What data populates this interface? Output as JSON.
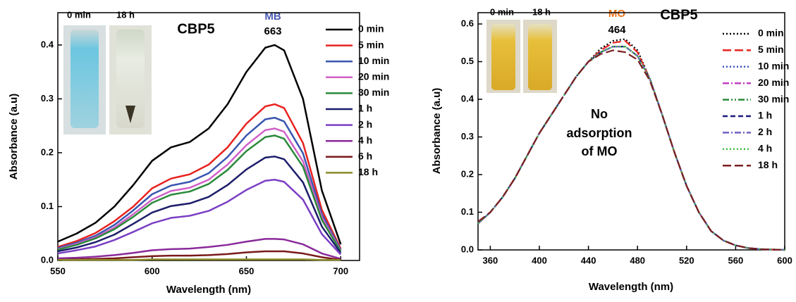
{
  "chart_data": [
    {
      "type": "line",
      "title": "CBP5",
      "annotations": [
        "MB",
        "663"
      ],
      "photo_labels": [
        "0 min",
        "18 h"
      ],
      "xlabel": "Wavelength (nm)",
      "ylabel": "Absorbance (a.u)",
      "x": [
        550,
        560,
        570,
        580,
        590,
        600,
        610,
        620,
        630,
        640,
        650,
        660,
        665,
        670,
        680,
        690,
        700
      ],
      "xlim": [
        550,
        710
      ],
      "xticks": [
        550,
        600,
        650,
        700
      ],
      "ylim": [
        0,
        0.46
      ],
      "yticks": [
        {
          "value": 0,
          "label": "0.0"
        },
        0.1,
        0.2,
        0.3,
        0.4
      ],
      "legend": "upper right",
      "series": [
        {
          "name": "0 min",
          "color": "#000000",
          "dash": "solid",
          "values": [
            0.035,
            0.05,
            0.07,
            0.1,
            0.14,
            0.185,
            0.21,
            0.22,
            0.245,
            0.29,
            0.35,
            0.395,
            0.4,
            0.39,
            0.3,
            0.13,
            0.03
          ]
        },
        {
          "name": "5 min",
          "color": "#e8221f",
          "dash": "solid",
          "values": [
            0.025,
            0.036,
            0.051,
            0.073,
            0.1,
            0.134,
            0.152,
            0.16,
            0.178,
            0.21,
            0.254,
            0.286,
            0.29,
            0.283,
            0.218,
            0.094,
            0.022
          ]
        },
        {
          "name": "10 min",
          "color": "#3a55b0",
          "dash": "solid",
          "values": [
            0.023,
            0.033,
            0.046,
            0.066,
            0.093,
            0.123,
            0.139,
            0.146,
            0.162,
            0.192,
            0.232,
            0.262,
            0.265,
            0.258,
            0.199,
            0.086,
            0.02
          ]
        },
        {
          "name": "20 min",
          "color": "#d060c8",
          "dash": "solid",
          "values": [
            0.021,
            0.031,
            0.043,
            0.061,
            0.086,
            0.113,
            0.129,
            0.135,
            0.15,
            0.178,
            0.214,
            0.242,
            0.245,
            0.239,
            0.184,
            0.08,
            0.018
          ]
        },
        {
          "name": "30 min",
          "color": "#2a8a3a",
          "dash": "solid",
          "values": [
            0.02,
            0.029,
            0.041,
            0.058,
            0.081,
            0.107,
            0.122,
            0.128,
            0.142,
            0.168,
            0.203,
            0.229,
            0.232,
            0.226,
            0.174,
            0.075,
            0.017
          ]
        },
        {
          "name": "1 h",
          "color": "#1d1d6b",
          "dash": "solid",
          "values": [
            0.017,
            0.024,
            0.034,
            0.048,
            0.068,
            0.089,
            0.101,
            0.106,
            0.118,
            0.14,
            0.169,
            0.191,
            0.193,
            0.188,
            0.145,
            0.063,
            0.014
          ]
        },
        {
          "name": "2 h",
          "color": "#7b3fc4",
          "dash": "solid",
          "values": [
            0.013,
            0.019,
            0.026,
            0.038,
            0.053,
            0.069,
            0.079,
            0.083,
            0.092,
            0.109,
            0.131,
            0.148,
            0.15,
            0.146,
            0.113,
            0.049,
            0.011
          ]
        },
        {
          "name": "4 h",
          "color": "#8a2a9a",
          "dash": "solid",
          "values": [
            0.004,
            0.005,
            0.007,
            0.01,
            0.014,
            0.019,
            0.021,
            0.022,
            0.025,
            0.029,
            0.035,
            0.04,
            0.04,
            0.039,
            0.03,
            0.013,
            0.003
          ]
        },
        {
          "name": "6 h",
          "color": "#7a1a1a",
          "dash": "solid",
          "values": [
            0.001,
            0.002,
            0.003,
            0.004,
            0.006,
            0.008,
            0.009,
            0.009,
            0.01,
            0.012,
            0.015,
            0.017,
            0.017,
            0.017,
            0.013,
            0.006,
            0.001
          ]
        },
        {
          "name": "18 h",
          "color": "#8a8a2a",
          "dash": "solid",
          "values": [
            0.001,
            0.001,
            0.001,
            0.001,
            0.001,
            0.002,
            0.002,
            0.002,
            0.002,
            0.002,
            0.002,
            0.002,
            0.002,
            0.002,
            0.002,
            0.001,
            0.001
          ]
        }
      ]
    },
    {
      "type": "line",
      "title": "CBP5",
      "annotations": [
        "MO",
        "464"
      ],
      "photo_labels": [
        "0 min",
        "18 h"
      ],
      "note": [
        "No",
        "adsorption",
        "of MO"
      ],
      "xlabel": "Wavelength (nm)",
      "ylabel": "Absorbance (a.u)",
      "x": [
        350,
        360,
        370,
        380,
        390,
        400,
        410,
        420,
        430,
        440,
        450,
        460,
        470,
        480,
        490,
        500,
        510,
        520,
        530,
        540,
        550,
        560,
        570,
        580,
        590,
        600
      ],
      "xlim": [
        350,
        600
      ],
      "xticks": [
        360,
        400,
        440,
        480,
        520,
        560,
        600
      ],
      "ylim": [
        0,
        0.63
      ],
      "yticks": [
        {
          "value": 0,
          "label": "0.0"
        },
        0.1,
        0.2,
        0.3,
        0.4,
        0.5,
        0.6
      ],
      "legend": "upper right",
      "series": [
        {
          "name": "0 min",
          "color": "#000000",
          "dash": "dot",
          "values": [
            0.07,
            0.1,
            0.14,
            0.19,
            0.25,
            0.31,
            0.36,
            0.41,
            0.46,
            0.5,
            0.535,
            0.555,
            0.56,
            0.53,
            0.455,
            0.36,
            0.26,
            0.17,
            0.1,
            0.05,
            0.025,
            0.012,
            0.005,
            0.002,
            0.001,
            0
          ]
        },
        {
          "name": "5 min",
          "color": "#e8221f",
          "dash": "longdash",
          "values": [
            0.07,
            0.1,
            0.14,
            0.19,
            0.25,
            0.31,
            0.36,
            0.41,
            0.46,
            0.5,
            0.53,
            0.55,
            0.555,
            0.525,
            0.455,
            0.36,
            0.26,
            0.17,
            0.1,
            0.05,
            0.025,
            0.012,
            0.005,
            0.002,
            0.001,
            0
          ]
        },
        {
          "name": "10 min",
          "color": "#4050c0",
          "dash": "dot",
          "values": [
            0.07,
            0.1,
            0.14,
            0.19,
            0.25,
            0.31,
            0.36,
            0.41,
            0.46,
            0.5,
            0.525,
            0.54,
            0.54,
            0.515,
            0.455,
            0.36,
            0.26,
            0.17,
            0.1,
            0.05,
            0.025,
            0.012,
            0.005,
            0.002,
            0.001,
            0
          ]
        },
        {
          "name": "20 min",
          "color": "#c040c0",
          "dash": "dashdot",
          "values": [
            0.07,
            0.1,
            0.14,
            0.19,
            0.25,
            0.31,
            0.36,
            0.41,
            0.46,
            0.5,
            0.525,
            0.54,
            0.54,
            0.515,
            0.455,
            0.36,
            0.26,
            0.17,
            0.1,
            0.05,
            0.025,
            0.012,
            0.005,
            0.002,
            0.001,
            0
          ]
        },
        {
          "name": "30 min",
          "color": "#2a8a3a",
          "dash": "dashdotdot",
          "values": [
            0.07,
            0.1,
            0.14,
            0.19,
            0.25,
            0.31,
            0.36,
            0.41,
            0.46,
            0.5,
            0.525,
            0.54,
            0.54,
            0.515,
            0.455,
            0.36,
            0.26,
            0.17,
            0.1,
            0.05,
            0.025,
            0.012,
            0.005,
            0.002,
            0.001,
            0
          ]
        },
        {
          "name": "1 h",
          "color": "#1a1a7a",
          "dash": "dash",
          "values": [
            0.07,
            0.1,
            0.14,
            0.19,
            0.25,
            0.31,
            0.36,
            0.41,
            0.46,
            0.5,
            0.525,
            0.54,
            0.54,
            0.515,
            0.455,
            0.36,
            0.26,
            0.17,
            0.1,
            0.05,
            0.025,
            0.012,
            0.005,
            0.002,
            0.001,
            0
          ]
        },
        {
          "name": "2 h",
          "color": "#7060c0",
          "dash": "dashdot",
          "values": [
            0.07,
            0.1,
            0.14,
            0.19,
            0.25,
            0.31,
            0.36,
            0.41,
            0.46,
            0.5,
            0.525,
            0.54,
            0.54,
            0.515,
            0.455,
            0.36,
            0.26,
            0.17,
            0.1,
            0.05,
            0.025,
            0.012,
            0.005,
            0.002,
            0.001,
            0
          ]
        },
        {
          "name": "4 h",
          "color": "#40c040",
          "dash": "dot",
          "values": [
            0.07,
            0.1,
            0.14,
            0.19,
            0.25,
            0.31,
            0.36,
            0.41,
            0.46,
            0.5,
            0.525,
            0.54,
            0.54,
            0.515,
            0.455,
            0.36,
            0.26,
            0.17,
            0.1,
            0.05,
            0.025,
            0.012,
            0.005,
            0.002,
            0.001,
            0
          ]
        },
        {
          "name": "18 h",
          "color": "#7a2020",
          "dash": "longdash",
          "values": [
            0.075,
            0.1,
            0.14,
            0.19,
            0.25,
            0.31,
            0.36,
            0.41,
            0.46,
            0.5,
            0.52,
            0.53,
            0.525,
            0.505,
            0.45,
            0.36,
            0.26,
            0.17,
            0.1,
            0.05,
            0.025,
            0.012,
            0.005,
            0.002,
            0.001,
            0
          ]
        }
      ]
    }
  ]
}
